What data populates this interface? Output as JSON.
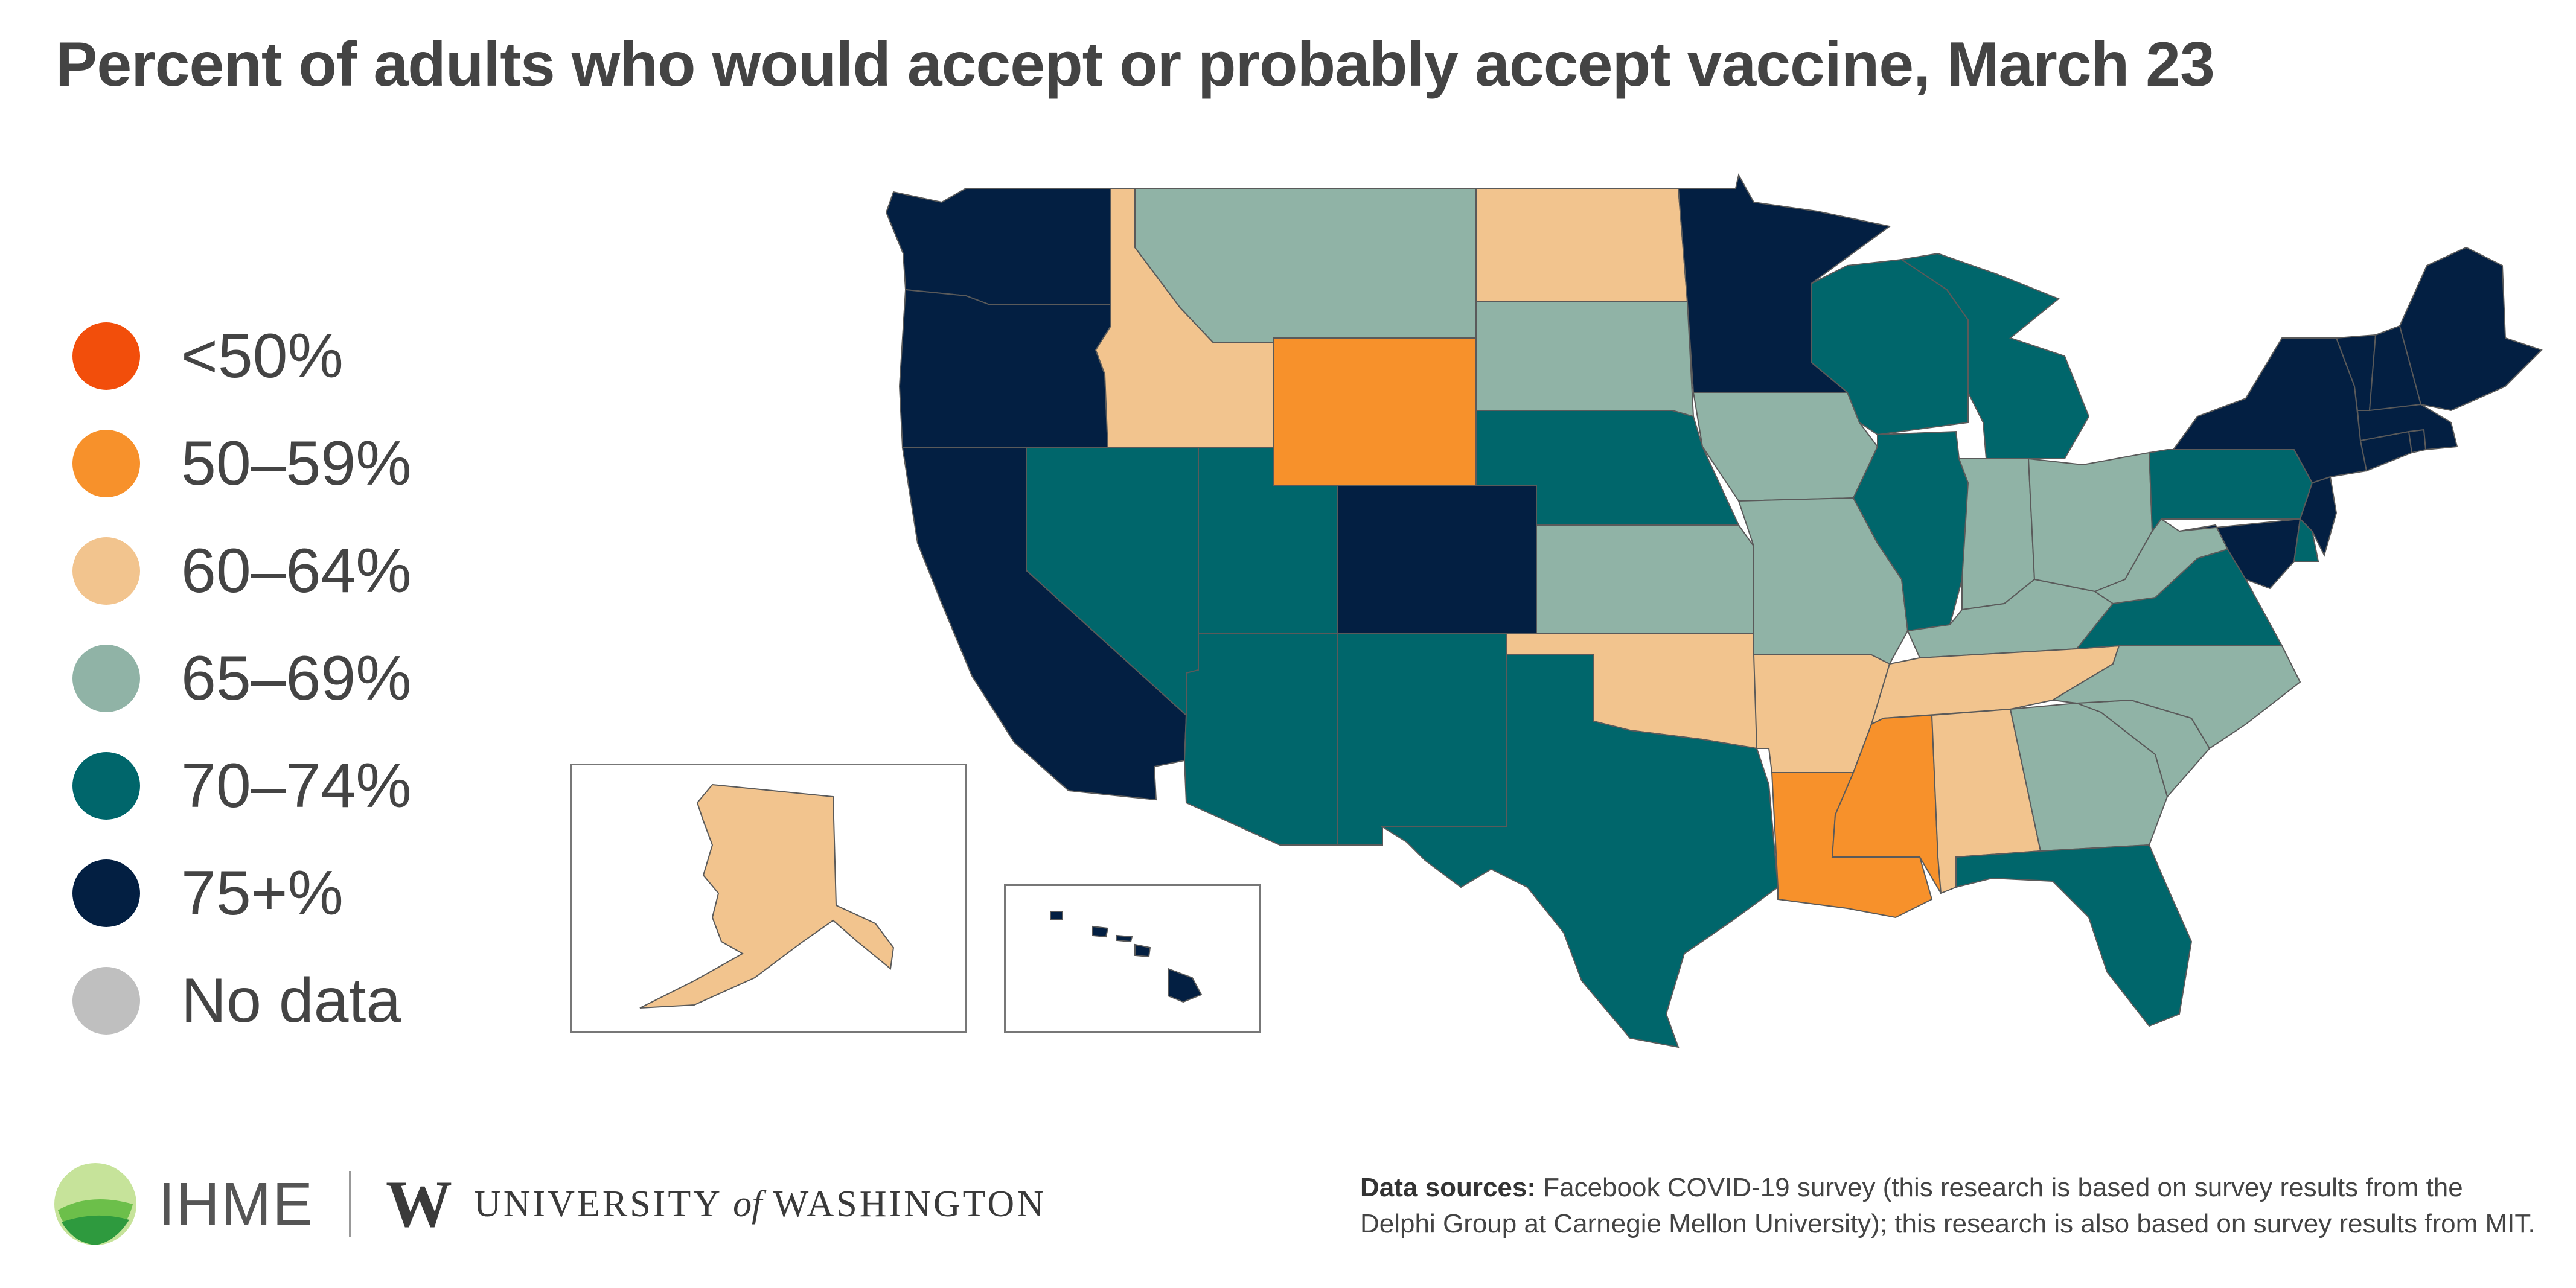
{
  "title": "Percent of adults who would accept or probably accept vaccine, March 23",
  "legend": [
    {
      "label": "<50%",
      "color": "#f24e0b"
    },
    {
      "label": "50–59%",
      "color": "#f7912b"
    },
    {
      "label": "60–64%",
      "color": "#f2c48e"
    },
    {
      "label": "65–69%",
      "color": "#90b3a6"
    },
    {
      "label": "70–74%",
      "color": "#00666b"
    },
    {
      "label": "75+%",
      "color": "#031f42"
    },
    {
      "label": "No data",
      "color": "#bfbfbf"
    }
  ],
  "colors": {
    "c50_59": "#f7912b",
    "c60_64": "#f2c48e",
    "c65_69": "#90b3a6",
    "c70_74": "#00666b",
    "c75": "#031f42"
  },
  "footer": {
    "ihme": "IHME",
    "uw_w": "W",
    "uw_university": "UNIVERSITY",
    "uw_of": "of",
    "uw_washington": "WASHINGTON",
    "sources_label": "Data sources:",
    "sources_text": " Facebook COVID-19 survey (this research is based on survey results from the Delphi Group at Carnegie Mellon University); this research is also based on survey results from MIT."
  }
}
